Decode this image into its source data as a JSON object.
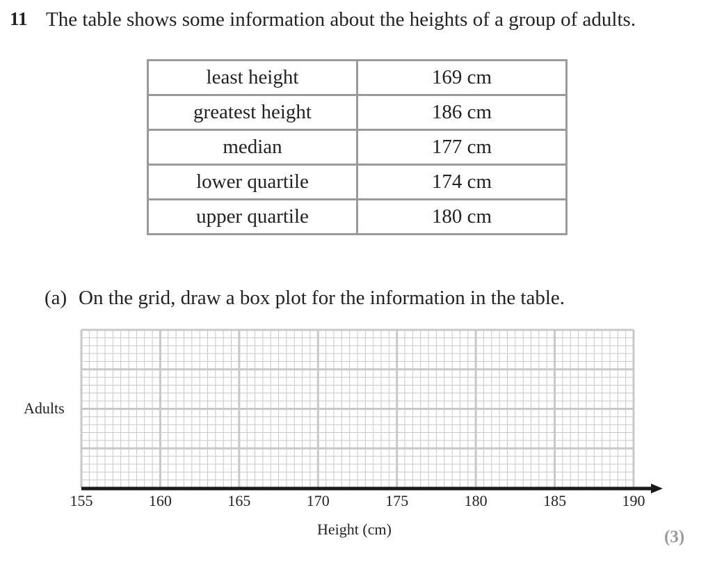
{
  "question": {
    "number": "11",
    "text": "The table shows some information about the heights of a group of adults."
  },
  "table": {
    "rows": [
      {
        "label": "least height",
        "value": "169 cm"
      },
      {
        "label": "greatest height",
        "value": "186 cm"
      },
      {
        "label": "median",
        "value": "177 cm"
      },
      {
        "label": "lower quartile",
        "value": "174 cm"
      },
      {
        "label": "upper quartile",
        "value": "180 cm"
      }
    ]
  },
  "part_a": {
    "label": "(a)",
    "text": "On the grid, draw a box plot for the information in the table.",
    "marks": "(3)"
  },
  "chart_data": {
    "type": "grid",
    "ylabel": "Adults",
    "xlabel": "Height (cm)",
    "x_ticks": [
      "155",
      "160",
      "165",
      "170",
      "175",
      "180",
      "185",
      "190"
    ],
    "xlim": [
      155,
      190
    ],
    "grid": true
  },
  "colors": {
    "grid_line": "#c8c8c8",
    "axis": "#1a1a1a",
    "table_border": "#9a9a9a"
  }
}
